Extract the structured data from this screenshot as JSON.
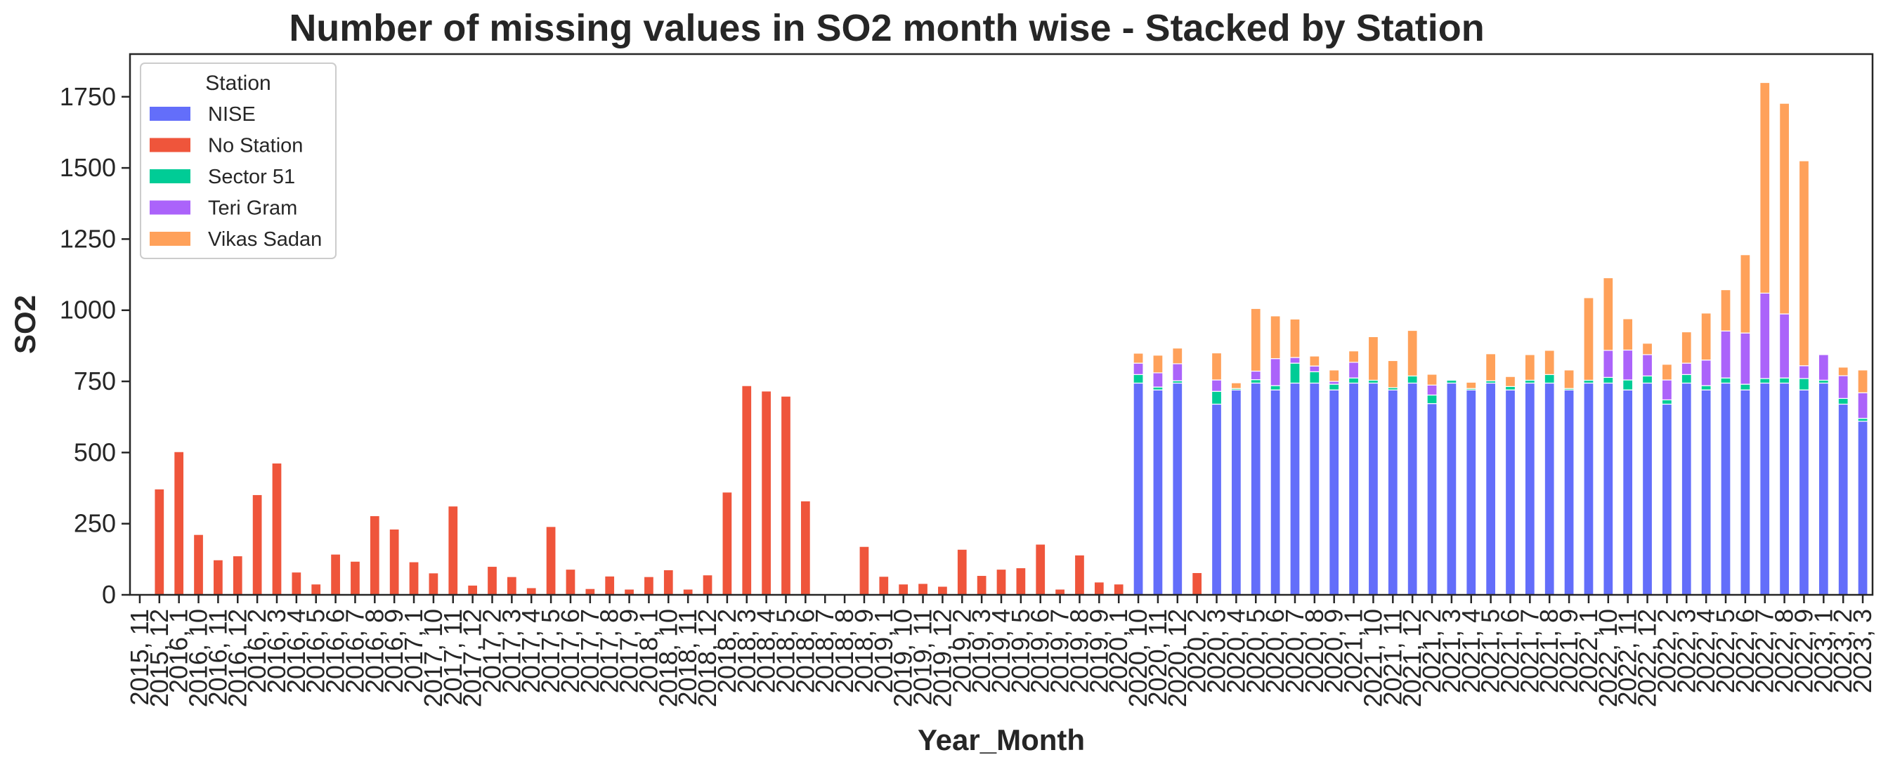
{
  "chart_data": {
    "type": "bar",
    "stacked": true,
    "title": "Number of missing values in SO2 month wise - Stacked by Station",
    "xlabel": "Year_Month",
    "ylabel": "SO2",
    "ylim": [
      0,
      1900
    ],
    "yticks": [
      0,
      250,
      500,
      750,
      1000,
      1250,
      1500,
      1750
    ],
    "grid": false,
    "legend": {
      "title": "Station",
      "placement": "upper-left"
    },
    "categories": [
      "2015, 11",
      "2015, 12",
      "2016, 1",
      "2016, 10",
      "2016, 11",
      "2016, 12",
      "2016, 2",
      "2016, 3",
      "2016, 4",
      "2016, 5",
      "2016, 6",
      "2016, 7",
      "2016, 8",
      "2016, 9",
      "2017, 1",
      "2017, 10",
      "2017, 11",
      "2017, 12",
      "2017, 2",
      "2017, 3",
      "2017, 4",
      "2017, 5",
      "2017, 6",
      "2017, 7",
      "2017, 8",
      "2017, 9",
      "2018, 1",
      "2018, 10",
      "2018, 11",
      "2018, 12",
      "2018, 2",
      "2018, 3",
      "2018, 4",
      "2018, 5",
      "2018, 6",
      "2018, 7",
      "2018, 8",
      "2018, 9",
      "2019, 1",
      "2019, 10",
      "2019, 11",
      "2019, 12",
      "2019, 2",
      "2019, 3",
      "2019, 4",
      "2019, 5",
      "2019, 6",
      "2019, 7",
      "2019, 8",
      "2019, 9",
      "2020, 1",
      "2020, 10",
      "2020, 11",
      "2020, 12",
      "2020, 2",
      "2020, 3",
      "2020, 4",
      "2020, 5",
      "2020, 6",
      "2020, 7",
      "2020, 8",
      "2020, 9",
      "2021, 1",
      "2021, 10",
      "2021, 11",
      "2021, 12",
      "2021, 2",
      "2021, 3",
      "2021, 4",
      "2021, 5",
      "2021, 6",
      "2021, 7",
      "2021, 8",
      "2021, 9",
      "2022, 1",
      "2022, 10",
      "2022, 11",
      "2022, 12",
      "2022, 2",
      "2022, 3",
      "2022, 4",
      "2022, 5",
      "2022, 6",
      "2022, 7",
      "2022, 8",
      "2022, 9",
      "2023, 1",
      "2023, 2",
      "2023, 3"
    ],
    "series": [
      {
        "name": "NISE",
        "color": "#636efa",
        "values": [
          0,
          0,
          0,
          0,
          0,
          0,
          0,
          0,
          0,
          0,
          0,
          0,
          0,
          0,
          0,
          0,
          0,
          0,
          0,
          0,
          0,
          0,
          0,
          0,
          0,
          0,
          0,
          0,
          0,
          0,
          0,
          0,
          0,
          0,
          0,
          0,
          0,
          0,
          0,
          0,
          0,
          0,
          0,
          0,
          0,
          0,
          0,
          0,
          0,
          0,
          0,
          744,
          720,
          744,
          0,
          670,
          720,
          744,
          720,
          744,
          744,
          720,
          744,
          744,
          720,
          744,
          672,
          744,
          720,
          744,
          720,
          744,
          744,
          720,
          744,
          744,
          720,
          744,
          670,
          744,
          720,
          744,
          720,
          744,
          744,
          720,
          744,
          670,
          610
        ]
      },
      {
        "name": "No Station",
        "color": "#ef553b",
        "values": [
          0,
          372,
          503,
          212,
          123,
          137,
          352,
          463,
          80,
          38,
          143,
          118,
          278,
          231,
          116,
          77,
          312,
          34,
          100,
          64,
          25,
          240,
          90,
          22,
          66,
          20,
          64,
          88,
          20,
          70,
          361,
          735,
          716,
          698,
          330,
          0,
          0,
          170,
          65,
          38,
          40,
          30,
          160,
          68,
          90,
          95,
          178,
          20,
          140,
          45,
          38,
          0,
          0,
          0,
          78,
          0,
          0,
          0,
          0,
          0,
          0,
          0,
          0,
          0,
          0,
          0,
          0,
          0,
          0,
          0,
          0,
          0,
          0,
          0,
          0,
          0,
          0,
          0,
          0,
          0,
          0,
          0,
          0,
          0,
          0,
          0,
          0,
          0,
          0
        ]
      },
      {
        "name": "Sector 51",
        "color": "#00cc96",
        "values": [
          0,
          0,
          0,
          0,
          0,
          0,
          0,
          0,
          0,
          0,
          0,
          0,
          0,
          0,
          0,
          0,
          0,
          0,
          0,
          0,
          0,
          0,
          0,
          0,
          0,
          0,
          0,
          0,
          0,
          0,
          0,
          0,
          0,
          0,
          0,
          0,
          0,
          0,
          0,
          0,
          0,
          0,
          0,
          0,
          0,
          0,
          0,
          0,
          0,
          0,
          0,
          30,
          10,
          8,
          0,
          45,
          5,
          12,
          15,
          70,
          40,
          20,
          18,
          10,
          8,
          25,
          30,
          10,
          5,
          8,
          12,
          10,
          30,
          5,
          10,
          20,
          35,
          25,
          15,
          30,
          15,
          18,
          20,
          16,
          18,
          40,
          10,
          20,
          10
        ]
      },
      {
        "name": "Teri Gram",
        "color": "#ab63fa",
        "values": [
          0,
          0,
          0,
          0,
          0,
          0,
          0,
          0,
          0,
          0,
          0,
          0,
          0,
          0,
          0,
          0,
          0,
          0,
          0,
          0,
          0,
          0,
          0,
          0,
          0,
          0,
          0,
          0,
          0,
          0,
          0,
          0,
          0,
          0,
          0,
          0,
          0,
          0,
          0,
          0,
          0,
          0,
          0,
          0,
          0,
          0,
          0,
          0,
          0,
          0,
          0,
          40,
          50,
          60,
          0,
          40,
          0,
          30,
          95,
          20,
          20,
          10,
          55,
          0,
          0,
          0,
          35,
          0,
          0,
          0,
          0,
          0,
          0,
          0,
          0,
          95,
          105,
          75,
          70,
          40,
          90,
          165,
          180,
          300,
          225,
          45,
          90,
          80,
          90
        ]
      },
      {
        "name": "Vikas Sadan",
        "color": "#ffa15a",
        "values": [
          0,
          0,
          0,
          0,
          0,
          0,
          0,
          0,
          0,
          0,
          0,
          0,
          0,
          0,
          0,
          0,
          0,
          0,
          0,
          0,
          0,
          0,
          0,
          0,
          0,
          0,
          0,
          0,
          0,
          0,
          0,
          0,
          0,
          0,
          0,
          0,
          0,
          0,
          0,
          0,
          0,
          0,
          0,
          0,
          0,
          0,
          0,
          0,
          0,
          0,
          0,
          35,
          62,
          55,
          0,
          95,
          20,
          220,
          150,
          135,
          35,
          40,
          40,
          153,
          95,
          160,
          38,
          0,
          22,
          95,
          35,
          90,
          85,
          65,
          290,
          255,
          110,
          40,
          55,
          110,
          165,
          145,
          275,
          740,
          740,
          720,
          0,
          30,
          80
        ]
      }
    ]
  }
}
